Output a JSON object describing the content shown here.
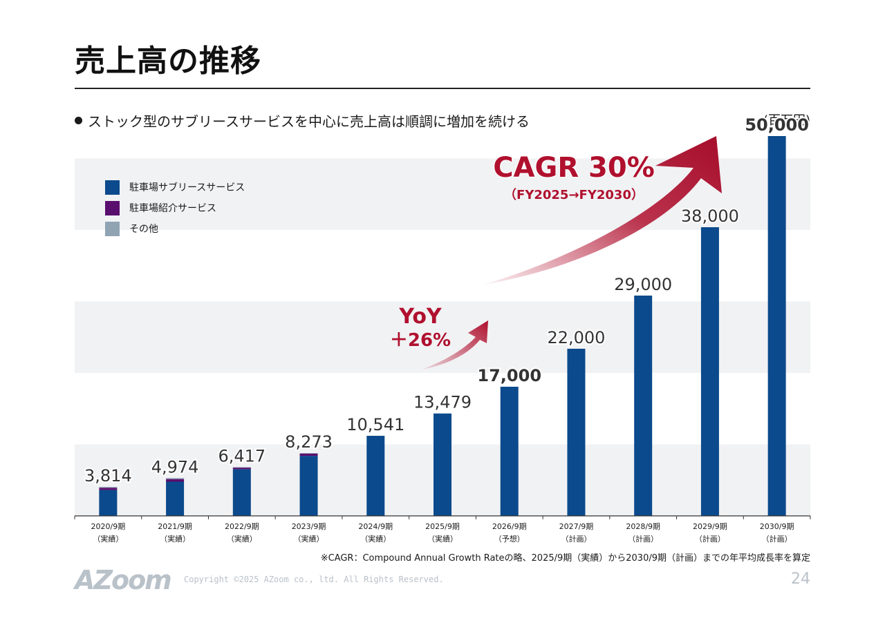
{
  "header": {
    "title": "売上高の推移",
    "bullet": "ストック型のサブリースサービスを中心に売上高は順調に増加を続ける",
    "unit": "(百万円)"
  },
  "legend": [
    {
      "label": "駐車場サブリースサービス",
      "color": "#0b4a8c"
    },
    {
      "label": "駐車場紹介サービス",
      "color": "#5a0f6e"
    },
    {
      "label": "その他",
      "color": "#8fa3b3"
    }
  ],
  "annotations": {
    "cagr_main": "CAGR 30%",
    "cagr_sub": "（FY2025→FY2030）",
    "yoy_line1": "YoY",
    "yoy_line2": "＋26%"
  },
  "footnote": "※CAGR：Compound Annual Growth Rateの略、2025/9期（実績）から2030/9期（計画）までの年平均成長率を算定",
  "footer": {
    "logo": "AZoom",
    "copyright": "Copyright ©2025 AZoom co., ltd. All Rights Reserved.",
    "page": "24"
  },
  "colors": {
    "accent": "#b0102e",
    "band": "#f1f2f4"
  },
  "chart_data": {
    "type": "bar",
    "stacked": true,
    "categories": [
      [
        "2020/9期",
        "（実績）"
      ],
      [
        "2021/9期",
        "（実績）"
      ],
      [
        "2022/9期",
        "（実績）"
      ],
      [
        "2023/9期",
        "（実績）"
      ],
      [
        "2024/9期",
        "（実績）"
      ],
      [
        "2025/9期",
        "（実績）"
      ],
      [
        "2026/9期",
        "（予想）"
      ],
      [
        "2027/9期",
        "（計画）"
      ],
      [
        "2028/9期",
        "（計画）"
      ],
      [
        "2029/9期",
        "（計画）"
      ],
      [
        "2030/9期",
        "（計画）"
      ]
    ],
    "series": [
      {
        "name": "駐車場サブリースサービス",
        "color": "#0b4a8c",
        "values": [
          3400,
          4500,
          6150,
          7900,
          10541,
          13479,
          17000,
          22000,
          29000,
          38000,
          50000
        ]
      },
      {
        "name": "駐車場紹介サービス",
        "color": "#5a0f6e",
        "values": [
          300,
          350,
          200,
          300,
          0,
          0,
          0,
          0,
          0,
          0,
          0
        ]
      },
      {
        "name": "その他",
        "color": "#8fa3b3",
        "values": [
          114,
          124,
          67,
          73,
          0,
          0,
          0,
          0,
          0,
          0,
          0
        ]
      }
    ],
    "totals": [
      "3,814",
      "4,974",
      "6,417",
      "8,273",
      "10,541",
      "13,479",
      "17,000",
      "22,000",
      "29,000",
      "38,000",
      "50,000"
    ],
    "totals_values": [
      3814,
      4974,
      6417,
      8273,
      10541,
      13479,
      17000,
      22000,
      29000,
      38000,
      50000
    ],
    "bold_labels": [
      6,
      10
    ],
    "ylim": [
      0,
      50000
    ],
    "grid_bands": true,
    "legend_position": "top-left"
  }
}
